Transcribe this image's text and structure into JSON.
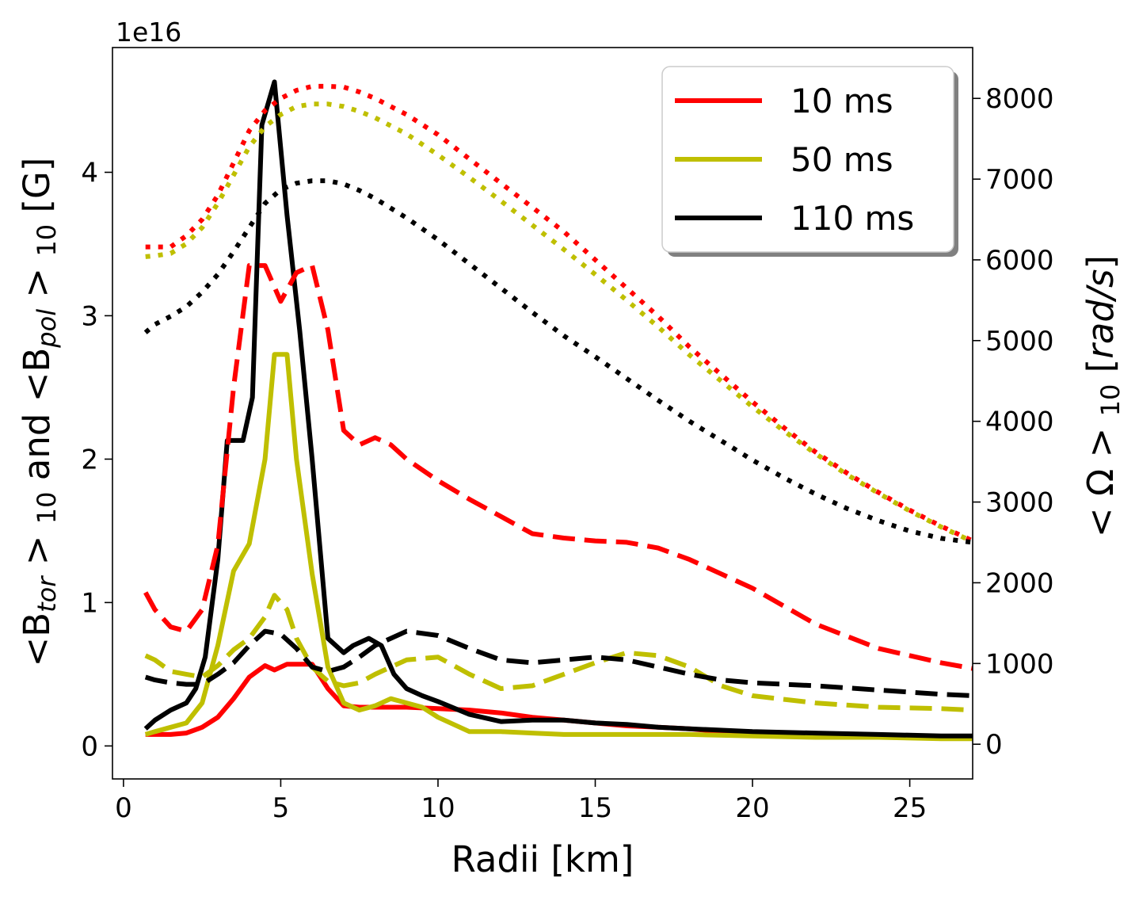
{
  "chart_data": {
    "type": "line",
    "title": "",
    "offset_label": "1e16",
    "xlabel": "Radii [km]",
    "ylabel_left": {
      "text_parts": [
        {
          "t": "<B",
          "sub": false,
          "italic": false
        },
        {
          "t": "tor",
          "sub": true,
          "italic": true
        },
        {
          "t": " > ",
          "sub": false,
          "italic": false
        },
        {
          "t": "10",
          "sub": true,
          "italic": false
        },
        {
          "t": " and <B",
          "sub": false,
          "italic": false
        },
        {
          "t": "pol",
          "sub": true,
          "italic": true
        },
        {
          "t": " > ",
          "sub": false,
          "italic": false
        },
        {
          "t": "10",
          "sub": true,
          "italic": false
        },
        {
          "t": " [G]",
          "sub": false,
          "italic": false
        }
      ]
    },
    "ylabel_right": {
      "text_parts": [
        {
          "t": "< Ω > ",
          "sub": false,
          "italic": false
        },
        {
          "t": "10",
          "sub": true,
          "italic": false
        },
        {
          "t": " [",
          "sub": false,
          "italic": false
        },
        {
          "t": "rad/s",
          "sub": false,
          "italic": true
        },
        {
          "t": "]",
          "sub": false,
          "italic": false
        }
      ]
    },
    "xlim": [
      -0.35,
      27
    ],
    "ylim_left": [
      -0.23,
      4.87
    ],
    "ylim_right": [
      -430,
      8630
    ],
    "xticks": [
      0,
      5,
      10,
      15,
      20,
      25
    ],
    "yticks_left": [
      0,
      1,
      2,
      3,
      4
    ],
    "yticks_right": [
      0,
      1000,
      2000,
      3000,
      4000,
      5000,
      6000,
      7000,
      8000
    ],
    "legend": {
      "position": "top-right",
      "entries": [
        {
          "label": "10 ms",
          "color": "#ff0000"
        },
        {
          "label": "50 ms",
          "color": "#bfbf00"
        },
        {
          "label": "110 ms",
          "color": "#000000"
        }
      ]
    },
    "line_styles": {
      "solid": "B_tor (left axis)",
      "dashed": "B_pol (left axis)",
      "dotted": "Omega (right axis)"
    },
    "series": [
      {
        "name": "10 ms B_tor",
        "color": "#ff0000",
        "style": "solid",
        "axis": "left",
        "x": [
          0.7,
          1,
          1.5,
          2,
          2.5,
          3,
          3.5,
          4,
          4.5,
          4.8,
          5.2,
          5.5,
          6,
          6.5,
          7,
          7.5,
          8,
          9,
          10,
          11,
          12,
          13,
          14,
          15,
          16,
          17,
          18,
          19,
          20,
          22,
          24,
          26,
          27
        ],
        "y": [
          0.08,
          0.08,
          0.08,
          0.09,
          0.13,
          0.2,
          0.33,
          0.48,
          0.56,
          0.53,
          0.57,
          0.57,
          0.57,
          0.4,
          0.28,
          0.27,
          0.27,
          0.27,
          0.26,
          0.25,
          0.23,
          0.2,
          0.18,
          0.16,
          0.14,
          0.13,
          0.12,
          0.1,
          0.09,
          0.08,
          0.07,
          0.06,
          0.06
        ]
      },
      {
        "name": "50 ms B_tor",
        "color": "#bfbf00",
        "style": "solid",
        "axis": "left",
        "x": [
          0.7,
          1,
          1.5,
          2,
          2.5,
          3,
          3.5,
          4,
          4.5,
          4.8,
          5.2,
          5.5,
          6,
          6.5,
          7,
          7.5,
          8,
          8.5,
          9,
          9.5,
          10,
          11,
          12,
          13,
          14,
          15,
          16,
          18,
          20,
          22,
          24,
          26,
          27
        ],
        "y": [
          0.08,
          0.1,
          0.13,
          0.16,
          0.3,
          0.7,
          1.22,
          1.41,
          2.0,
          2.73,
          2.73,
          2.0,
          1.2,
          0.55,
          0.3,
          0.25,
          0.28,
          0.33,
          0.3,
          0.27,
          0.2,
          0.1,
          0.1,
          0.09,
          0.08,
          0.08,
          0.08,
          0.08,
          0.07,
          0.06,
          0.06,
          0.05,
          0.05
        ]
      },
      {
        "name": "110 ms B_tor",
        "color": "#000000",
        "style": "solid",
        "axis": "left",
        "x": [
          0.7,
          1,
          1.5,
          2,
          2.3,
          2.6,
          3,
          3.3,
          3.8,
          4.1,
          4.4,
          4.8,
          5.2,
          5.6,
          6,
          6.5,
          7,
          7.3,
          7.8,
          8.2,
          8.6,
          9,
          9.5,
          10,
          11,
          12,
          13,
          14,
          15,
          16,
          17,
          18,
          20,
          22,
          24,
          26,
          27
        ],
        "y": [
          0.12,
          0.18,
          0.25,
          0.3,
          0.4,
          0.62,
          1.3,
          2.13,
          2.13,
          2.43,
          4.33,
          4.63,
          3.7,
          2.9,
          2.0,
          0.75,
          0.65,
          0.7,
          0.75,
          0.7,
          0.5,
          0.4,
          0.35,
          0.31,
          0.22,
          0.17,
          0.18,
          0.18,
          0.16,
          0.15,
          0.13,
          0.12,
          0.1,
          0.09,
          0.08,
          0.07,
          0.07
        ]
      },
      {
        "name": "10 ms B_pol",
        "color": "#ff0000",
        "style": "dashed",
        "axis": "left",
        "x": [
          0.7,
          1,
          1.5,
          2,
          2.5,
          3,
          3.5,
          4,
          4.5,
          5,
          5.5,
          6,
          6.5,
          7,
          7.5,
          8,
          8.5,
          9,
          10,
          11,
          12,
          13,
          14,
          15,
          16,
          17,
          18,
          19,
          20,
          22,
          24,
          26,
          27
        ],
        "y": [
          1.07,
          0.95,
          0.83,
          0.8,
          0.95,
          1.4,
          2.5,
          3.35,
          3.35,
          3.1,
          3.3,
          3.35,
          2.9,
          2.2,
          2.1,
          2.15,
          2.1,
          2.0,
          1.85,
          1.72,
          1.6,
          1.48,
          1.45,
          1.43,
          1.42,
          1.38,
          1.3,
          1.2,
          1.1,
          0.85,
          0.68,
          0.58,
          0.54
        ]
      },
      {
        "name": "50 ms B_pol",
        "color": "#bfbf00",
        "style": "dashed",
        "axis": "left",
        "x": [
          0.7,
          1,
          1.5,
          2,
          2.5,
          3,
          3.5,
          4,
          4.5,
          4.8,
          5.2,
          5.5,
          6,
          6.5,
          7,
          7.5,
          8,
          8.5,
          9,
          10,
          11,
          12,
          13,
          14,
          15,
          16,
          17,
          18,
          19,
          20,
          22,
          24,
          26,
          27
        ],
        "y": [
          0.63,
          0.6,
          0.52,
          0.5,
          0.48,
          0.56,
          0.67,
          0.75,
          0.9,
          1.05,
          0.95,
          0.75,
          0.55,
          0.45,
          0.42,
          0.44,
          0.5,
          0.55,
          0.6,
          0.62,
          0.5,
          0.4,
          0.42,
          0.5,
          0.58,
          0.65,
          0.63,
          0.55,
          0.42,
          0.35,
          0.3,
          0.27,
          0.26,
          0.25
        ]
      },
      {
        "name": "110 ms B_pol",
        "color": "#000000",
        "style": "dashed",
        "axis": "left",
        "x": [
          0.7,
          1,
          1.5,
          2,
          2.5,
          3,
          3.5,
          4,
          4.5,
          5,
          5.5,
          6,
          6.5,
          7,
          7.5,
          8,
          8.5,
          9,
          10,
          11,
          12,
          13,
          14,
          15,
          16,
          17,
          18,
          19,
          20,
          22,
          24,
          26,
          27
        ],
        "y": [
          0.48,
          0.46,
          0.44,
          0.43,
          0.43,
          0.5,
          0.58,
          0.7,
          0.8,
          0.78,
          0.68,
          0.55,
          0.52,
          0.55,
          0.62,
          0.7,
          0.75,
          0.8,
          0.77,
          0.68,
          0.6,
          0.58,
          0.6,
          0.62,
          0.6,
          0.55,
          0.5,
          0.46,
          0.44,
          0.42,
          0.39,
          0.36,
          0.35
        ]
      },
      {
        "name": "10 ms Omega",
        "color": "#ff0000",
        "style": "dotted",
        "axis": "right",
        "x": [
          0.7,
          1,
          1.5,
          2,
          2.5,
          3,
          3.5,
          4,
          4.5,
          5,
          5.5,
          6,
          6.5,
          7,
          7.5,
          8,
          9,
          10,
          11,
          12,
          13,
          14,
          15,
          16,
          17,
          18,
          19,
          20,
          21,
          22,
          23,
          24,
          25,
          26,
          27
        ],
        "y": [
          6160,
          6160,
          6160,
          6300,
          6500,
          6800,
          7200,
          7600,
          7850,
          8000,
          8100,
          8150,
          8150,
          8140,
          8080,
          8000,
          7800,
          7550,
          7250,
          6950,
          6650,
          6350,
          6000,
          5650,
          5300,
          4920,
          4580,
          4240,
          3920,
          3620,
          3360,
          3120,
          2900,
          2700,
          2520
        ]
      },
      {
        "name": "50 ms Omega",
        "color": "#bfbf00",
        "style": "dotted",
        "axis": "right",
        "x": [
          0.7,
          1,
          1.5,
          2,
          2.5,
          3,
          3.5,
          4,
          4.5,
          5,
          5.5,
          6,
          6.5,
          7,
          7.5,
          8,
          9,
          10,
          11,
          12,
          13,
          14,
          15,
          16,
          17,
          18,
          19,
          20,
          21,
          22,
          23,
          24,
          25,
          26,
          27
        ],
        "y": [
          6040,
          6050,
          6080,
          6200,
          6400,
          6700,
          7050,
          7400,
          7650,
          7800,
          7900,
          7930,
          7930,
          7900,
          7840,
          7760,
          7560,
          7300,
          7020,
          6730,
          6430,
          6130,
          5820,
          5500,
          5170,
          4820,
          4500,
          4180,
          3880,
          3600,
          3340,
          3110,
          2890,
          2690,
          2510
        ]
      },
      {
        "name": "110 ms Omega",
        "color": "#000000",
        "style": "dotted",
        "axis": "right",
        "x": [
          0.7,
          1,
          1.5,
          2,
          2.5,
          3,
          3.5,
          4,
          4.5,
          5,
          5.5,
          6,
          6.5,
          7,
          7.5,
          8,
          9,
          10,
          11,
          12,
          13,
          14,
          15,
          16,
          17,
          18,
          19,
          20,
          21,
          22,
          23,
          24,
          25,
          26,
          27
        ],
        "y": [
          5100,
          5200,
          5300,
          5420,
          5600,
          5820,
          6100,
          6400,
          6700,
          6870,
          6950,
          6980,
          6980,
          6940,
          6860,
          6760,
          6520,
          6250,
          5950,
          5650,
          5350,
          5060,
          4800,
          4530,
          4260,
          4000,
          3760,
          3520,
          3300,
          3100,
          2920,
          2770,
          2640,
          2550,
          2500
        ]
      }
    ]
  }
}
